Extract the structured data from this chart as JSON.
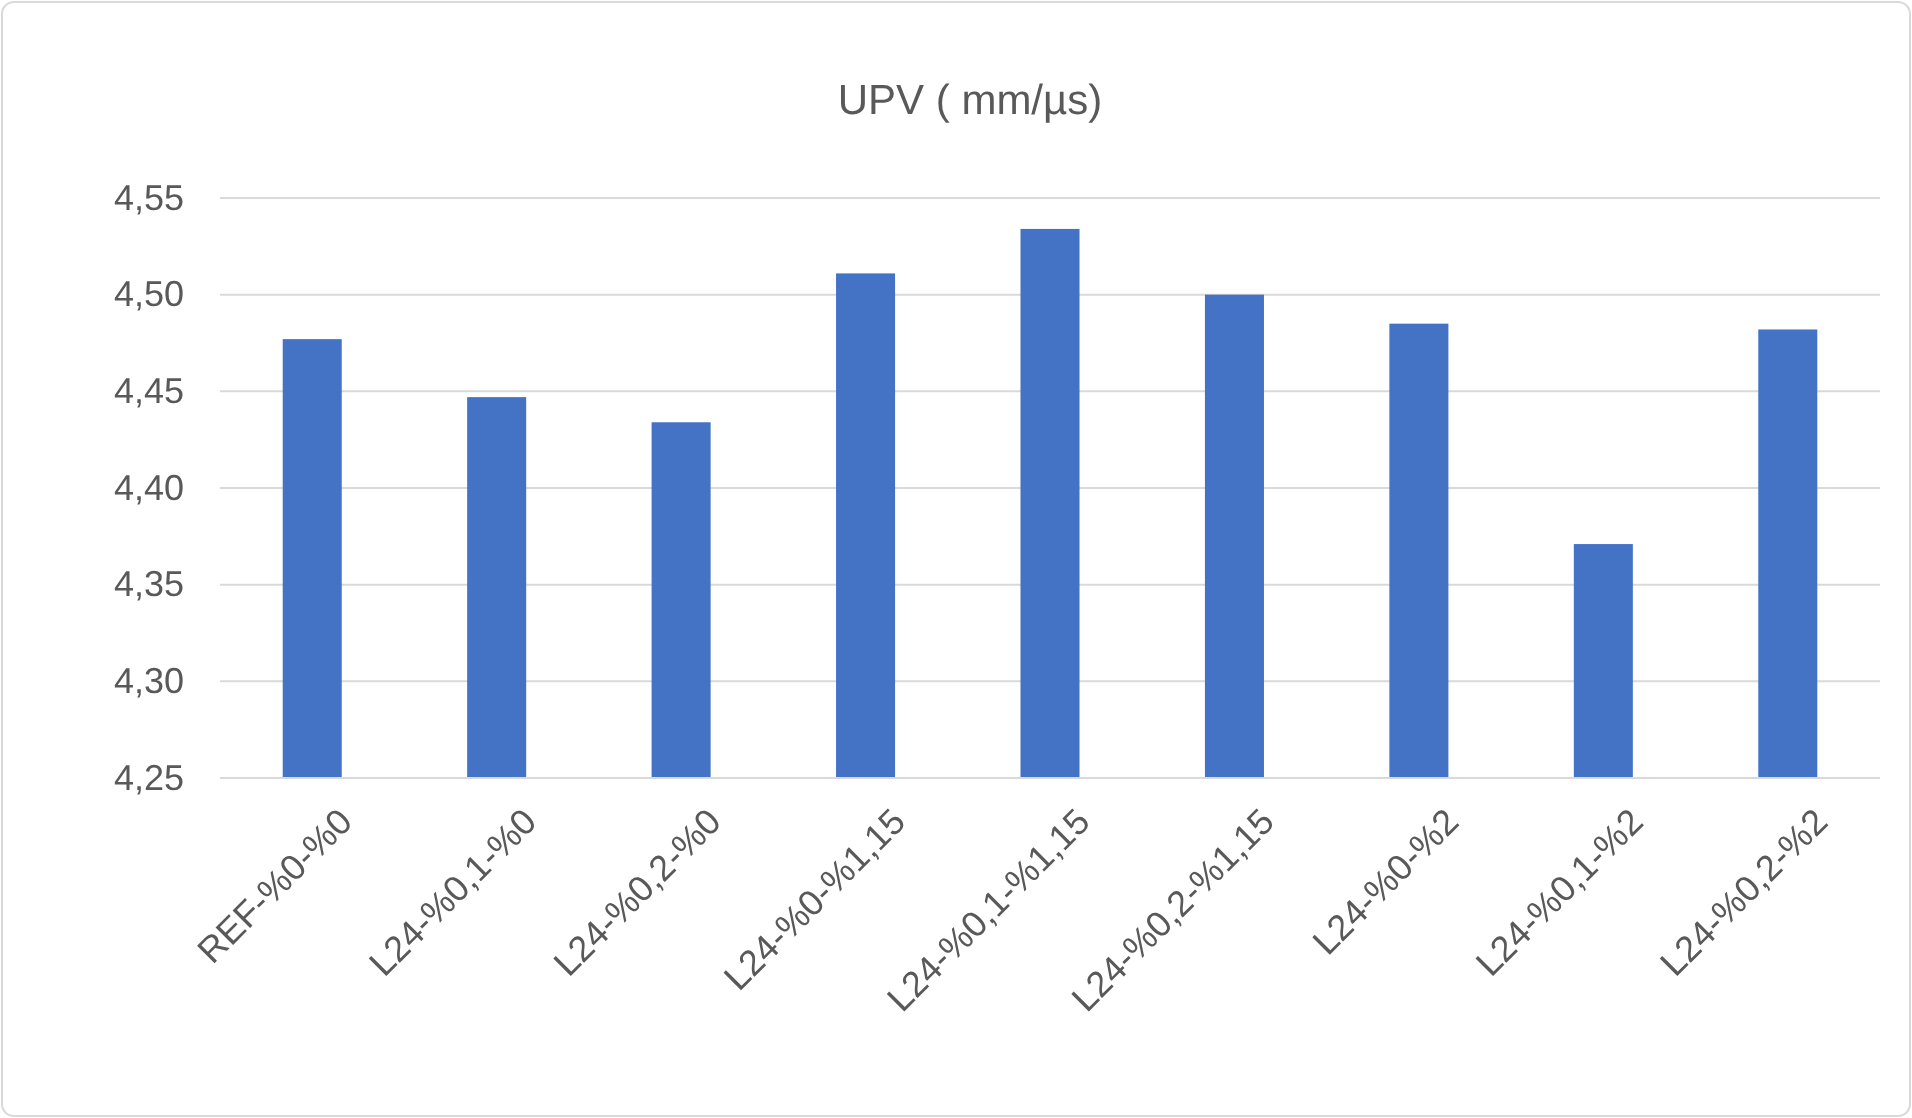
{
  "chart_data": {
    "type": "bar",
    "title": "UPV ( mm/µs)",
    "categories": [
      "REF-%0-%0",
      "L24-%0,1-%0",
      "L24-%0,2-%0",
      "L24-%0-%1,15",
      "L24-%0,1-%1,15",
      "L24-%0,2-%1,15",
      "L24-%0-%2",
      "L24-%0,1-%2",
      "L24-%0,2-%2"
    ],
    "values": [
      4.477,
      4.447,
      4.434,
      4.511,
      4.534,
      4.5,
      4.485,
      4.371,
      4.482
    ],
    "color": "#4472c4",
    "ylim": [
      4.25,
      4.55
    ],
    "yticks": [
      {
        "value": 4.25,
        "label": "4,25"
      },
      {
        "value": 4.3,
        "label": "4,30"
      },
      {
        "value": 4.35,
        "label": "4,35"
      },
      {
        "value": 4.4,
        "label": "4,40"
      },
      {
        "value": 4.45,
        "label": "4,45"
      },
      {
        "value": 4.5,
        "label": "4,50"
      },
      {
        "value": 4.55,
        "label": "4,55"
      }
    ],
    "grid": "y"
  }
}
